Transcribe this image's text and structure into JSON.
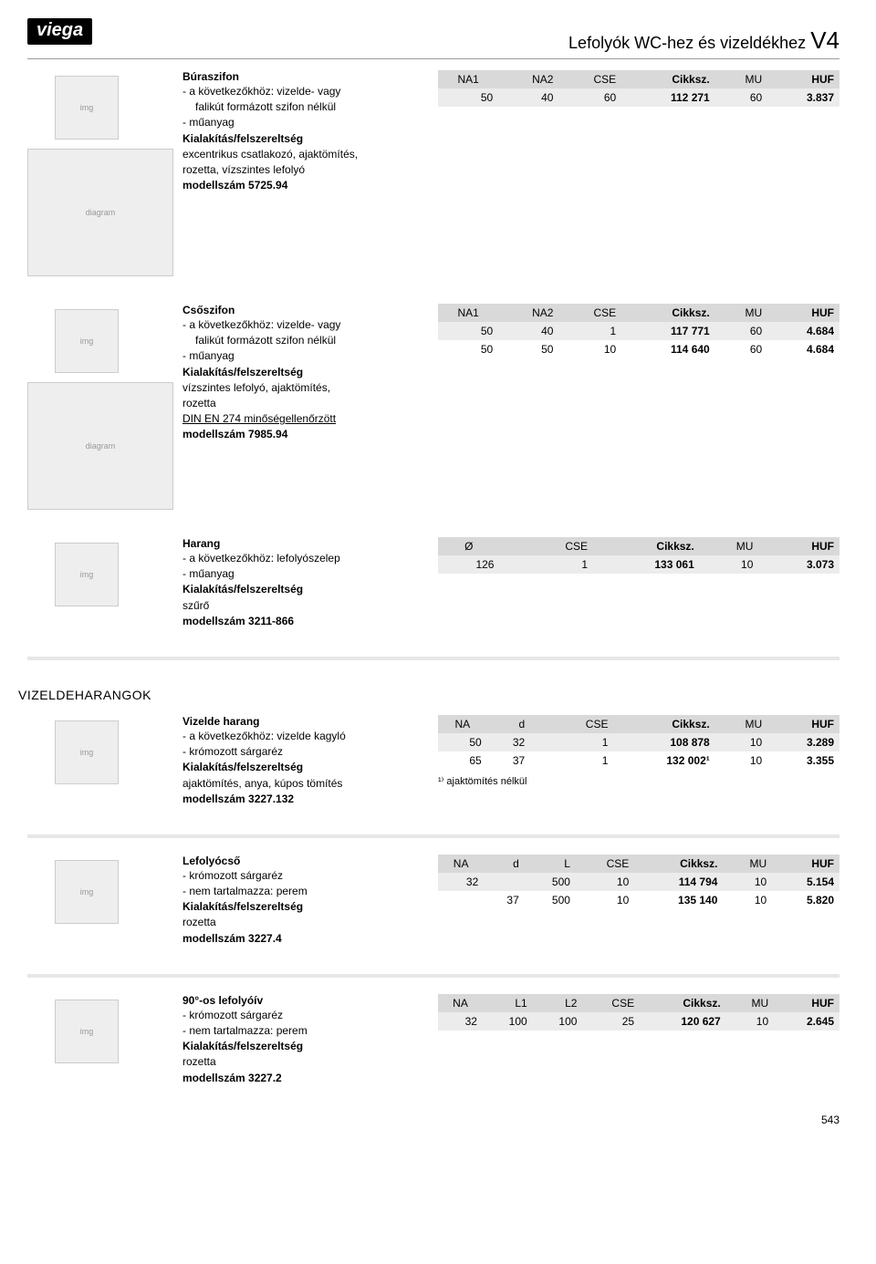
{
  "logo": "viega",
  "header_title": "Lefolyók WC-hez és vizeldékhez",
  "header_code": "V4",
  "tab_label": "V4",
  "page_number": "543",
  "section_title": "VIZELDEHARANGOK",
  "products": [
    {
      "title": "Búraszifon",
      "lines": [
        {
          "t": "- a következőkhöz: vizelde- vagy",
          "indent": false
        },
        {
          "t": "falikút formázott szifon nélkül",
          "indent": true
        },
        {
          "t": "- műanyag",
          "indent": false
        },
        {
          "t": "Kialakítás/felszereltség",
          "bold": true
        },
        {
          "t": "excentrikus csatlakozó, ajaktömítés,",
          "indent": false
        },
        {
          "t": "rozetta, vízszintes lefolyó",
          "indent": false
        },
        {
          "t": "modellszám 5725.94",
          "bold": true
        }
      ],
      "has_diagram": true,
      "columns": [
        "NA1",
        "NA2",
        "CSE",
        "Cikksz.",
        "MU",
        "HUF"
      ],
      "col_bold": [
        false,
        false,
        false,
        true,
        false,
        true
      ],
      "rows": [
        [
          "50",
          "40",
          "60",
          "112 271",
          "60",
          "3.837"
        ]
      ],
      "footnote": ""
    },
    {
      "title": "Csőszifon",
      "lines": [
        {
          "t": "- a következőkhöz: vizelde- vagy",
          "indent": false
        },
        {
          "t": "falikút formázott szifon nélkül",
          "indent": true
        },
        {
          "t": "- műanyag",
          "indent": false
        },
        {
          "t": "Kialakítás/felszereltség",
          "bold": true
        },
        {
          "t": "vízszintes lefolyó, ajaktömítés,",
          "indent": false
        },
        {
          "t": "rozetta",
          "indent": false
        },
        {
          "t": "DIN EN 274 minőségellenőrzött",
          "underline": true
        },
        {
          "t": "modellszám 7985.94",
          "bold": true
        }
      ],
      "has_diagram": true,
      "columns": [
        "NA1",
        "NA2",
        "CSE",
        "Cikksz.",
        "MU",
        "HUF"
      ],
      "col_bold": [
        false,
        false,
        false,
        true,
        false,
        true
      ],
      "rows": [
        [
          "50",
          "40",
          "1",
          "117 771",
          "60",
          "4.684"
        ],
        [
          "50",
          "50",
          "10",
          "114 640",
          "60",
          "4.684"
        ]
      ],
      "footnote": ""
    },
    {
      "title": "Harang",
      "lines": [
        {
          "t": "- a következőkhöz: lefolyószelep",
          "indent": false
        },
        {
          "t": "- műanyag",
          "indent": false
        },
        {
          "t": "Kialakítás/felszereltség",
          "bold": true
        },
        {
          "t": "szűrő",
          "indent": false
        },
        {
          "t": "modellszám 3211-866",
          "bold": true
        }
      ],
      "has_diagram": false,
      "columns": [
        "Ø",
        "",
        "CSE",
        "Cikksz.",
        "MU",
        "HUF"
      ],
      "col_bold": [
        false,
        false,
        false,
        true,
        false,
        true
      ],
      "rows": [
        [
          "126",
          "",
          "1",
          "133 061",
          "10",
          "3.073"
        ]
      ],
      "footnote": ""
    },
    {
      "title": "Vizelde harang",
      "lines": [
        {
          "t": "- a következőkhöz: vizelde kagyló",
          "indent": false
        },
        {
          "t": "- krómozott sárgaréz",
          "indent": false
        },
        {
          "t": "Kialakítás/felszereltség",
          "bold": true
        },
        {
          "t": "ajaktömítés, anya, kúpos tömítés",
          "indent": false
        },
        {
          "t": "modellszám 3227.132",
          "bold": true
        }
      ],
      "has_diagram": false,
      "columns": [
        "NA",
        "d",
        "",
        "CSE",
        "Cikksz.",
        "MU",
        "HUF"
      ],
      "col_bold": [
        false,
        false,
        false,
        false,
        true,
        false,
        true
      ],
      "rows": [
        [
          "50",
          "32",
          "",
          "1",
          "108 878",
          "10",
          "3.289"
        ],
        [
          "65",
          "37",
          "",
          "1",
          "132 002¹",
          "10",
          "3.355"
        ]
      ],
      "footnote": "¹⁾ ajaktömítés nélkül"
    },
    {
      "title": "Lefolyócső",
      "lines": [
        {
          "t": "- krómozott sárgaréz",
          "indent": false
        },
        {
          "t": "- nem tartalmazza: perem",
          "indent": false
        },
        {
          "t": "Kialakítás/felszereltség",
          "bold": true
        },
        {
          "t": "rozetta",
          "indent": false
        },
        {
          "t": "modellszám 3227.4",
          "bold": true
        }
      ],
      "has_diagram": false,
      "columns": [
        "NA",
        "d",
        "L",
        "CSE",
        "Cikksz.",
        "MU",
        "HUF"
      ],
      "col_bold": [
        false,
        false,
        false,
        false,
        true,
        false,
        true
      ],
      "rows": [
        [
          "32",
          "",
          "500",
          "10",
          "114 794",
          "10",
          "5.154"
        ],
        [
          "",
          "37",
          "500",
          "10",
          "135 140",
          "10",
          "5.820"
        ]
      ],
      "footnote": ""
    },
    {
      "title": "90°-os lefolyóív",
      "lines": [
        {
          "t": "- krómozott sárgaréz",
          "indent": false
        },
        {
          "t": "- nem tartalmazza: perem",
          "indent": false
        },
        {
          "t": "Kialakítás/felszereltség",
          "bold": true
        },
        {
          "t": "rozetta",
          "indent": false
        },
        {
          "t": "modellszám 3227.2",
          "bold": true
        }
      ],
      "has_diagram": false,
      "columns": [
        "NA",
        "L1",
        "L2",
        "CSE",
        "Cikksz.",
        "MU",
        "HUF"
      ],
      "col_bold": [
        false,
        false,
        false,
        false,
        true,
        false,
        true
      ],
      "rows": [
        [
          "32",
          "100",
          "100",
          "25",
          "120 627",
          "10",
          "2.645"
        ]
      ],
      "footnote": ""
    }
  ]
}
